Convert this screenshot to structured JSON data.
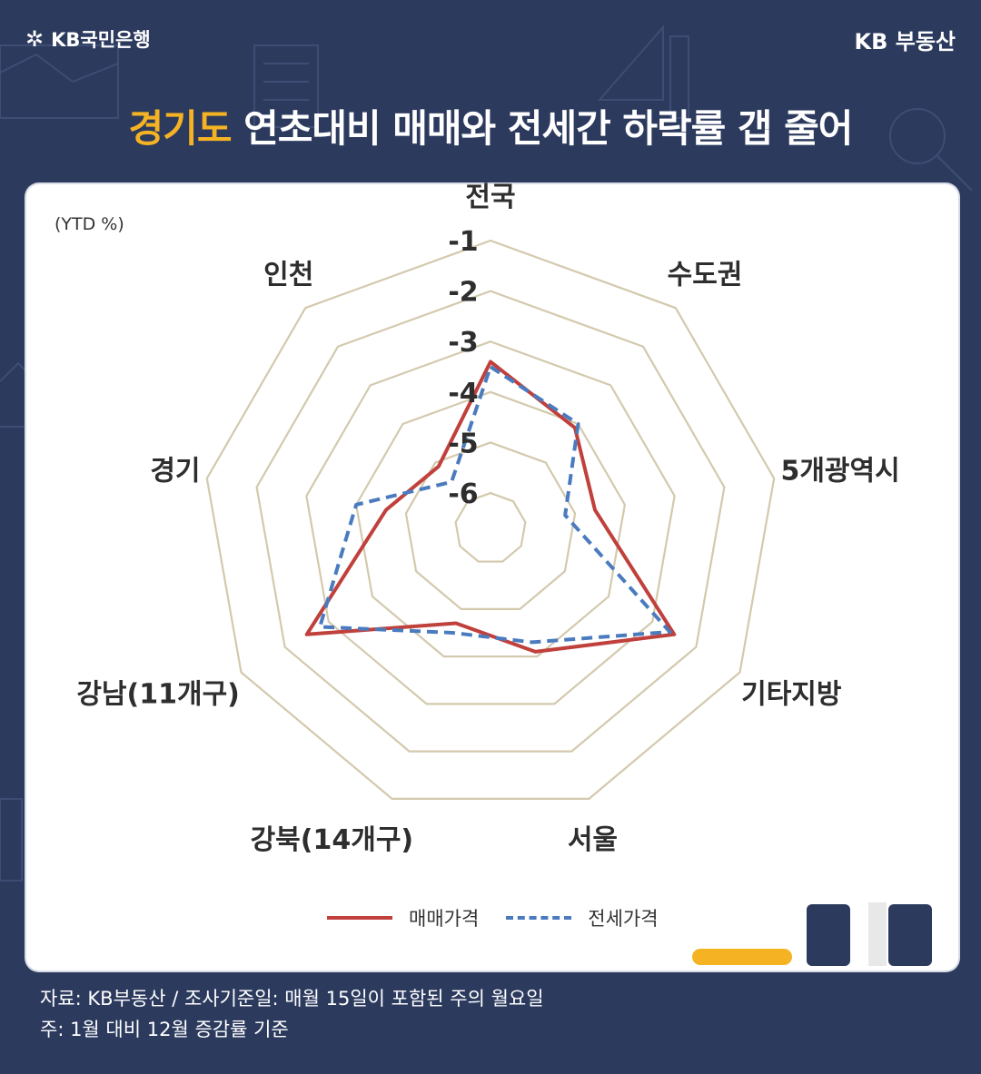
{
  "header": {
    "logo_left": "KB국민은행",
    "logo_right": "KB 부동산"
  },
  "title": {
    "highlight": "경기도",
    "rest": " 연초대비 매매와 전세간 하락률 갭 줄어"
  },
  "chart_data": {
    "type": "radar",
    "unit_label": "(YTD %)",
    "axes": [
      "전국",
      "수도권",
      "5개광역시",
      "기타지방",
      "서울",
      "강북(14개구)",
      "강남(11개구)",
      "경기",
      "인천"
    ],
    "radial_ticks": [
      -1,
      -2,
      -3,
      -4,
      -5,
      -6
    ],
    "range": [
      -6.7,
      -1
    ],
    "series": [
      {
        "name": "매매가격",
        "color": "#c0403c",
        "dash": false,
        "values": [
          -3.4,
          -4.1,
          -4.6,
          -2.5,
          -4.1,
          -4.7,
          -2.5,
          -4.6,
          -5.1
        ]
      },
      {
        "name": "전세가격",
        "color": "#4a7bbf",
        "dash": true,
        "values": [
          -3.5,
          -4.0,
          -5.2,
          -2.6,
          -4.3,
          -4.5,
          -2.8,
          -4.0,
          -5.5
        ]
      }
    ],
    "legend_position": "bottom"
  },
  "footer": {
    "source": "자료: KB부동산 / 조사기준일: 매월 15일이 포함된 주의 월요일",
    "note": "주: 1월 대비 12월 증감률 기준"
  }
}
